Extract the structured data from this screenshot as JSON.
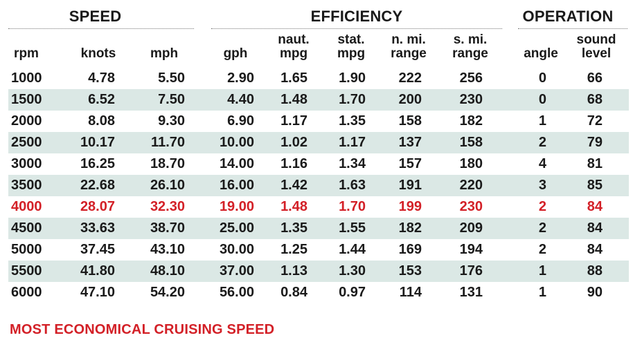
{
  "groups": {
    "speed": "SPEED",
    "efficiency": "EFFICIENCY",
    "operation": "OPERATION"
  },
  "columns": [
    {
      "key": "rpm",
      "label": "rpm"
    },
    {
      "key": "knots",
      "label": "knots"
    },
    {
      "key": "mph",
      "label": "mph"
    },
    {
      "key": "gph",
      "label": "gph"
    },
    {
      "key": "naut_mpg",
      "label": "naut.\nmpg"
    },
    {
      "key": "stat_mpg",
      "label": "stat.\nmpg"
    },
    {
      "key": "n_mi_range",
      "label": "n. mi.\nrange"
    },
    {
      "key": "s_mi_range",
      "label": "s. mi.\nrange"
    },
    {
      "key": "angle",
      "label": "angle"
    },
    {
      "key": "sound_level",
      "label": "sound\nlevel"
    }
  ],
  "rows": [
    {
      "values": [
        "1000",
        "4.78",
        "5.50",
        "2.90",
        "1.65",
        "1.90",
        "222",
        "256",
        "0",
        "66"
      ],
      "highlight": false
    },
    {
      "values": [
        "1500",
        "6.52",
        "7.50",
        "4.40",
        "1.48",
        "1.70",
        "200",
        "230",
        "0",
        "68"
      ],
      "highlight": false
    },
    {
      "values": [
        "2000",
        "8.08",
        "9.30",
        "6.90",
        "1.17",
        "1.35",
        "158",
        "182",
        "1",
        "72"
      ],
      "highlight": false
    },
    {
      "values": [
        "2500",
        "10.17",
        "11.70",
        "10.00",
        "1.02",
        "1.17",
        "137",
        "158",
        "2",
        "79"
      ],
      "highlight": false
    },
    {
      "values": [
        "3000",
        "16.25",
        "18.70",
        "14.00",
        "1.16",
        "1.34",
        "157",
        "180",
        "4",
        "81"
      ],
      "highlight": false
    },
    {
      "values": [
        "3500",
        "22.68",
        "26.10",
        "16.00",
        "1.42",
        "1.63",
        "191",
        "220",
        "3",
        "85"
      ],
      "highlight": false
    },
    {
      "values": [
        "4000",
        "28.07",
        "32.30",
        "19.00",
        "1.48",
        "1.70",
        "199",
        "230",
        "2",
        "84"
      ],
      "highlight": true
    },
    {
      "values": [
        "4500",
        "33.63",
        "38.70",
        "25.00",
        "1.35",
        "1.55",
        "182",
        "209",
        "2",
        "84"
      ],
      "highlight": false
    },
    {
      "values": [
        "5000",
        "37.45",
        "43.10",
        "30.00",
        "1.25",
        "1.44",
        "169",
        "194",
        "2",
        "84"
      ],
      "highlight": false
    },
    {
      "values": [
        "5500",
        "41.80",
        "48.10",
        "37.00",
        "1.13",
        "1.30",
        "153",
        "176",
        "1",
        "88"
      ],
      "highlight": false
    },
    {
      "values": [
        "6000",
        "47.10",
        "54.20",
        "56.00",
        "0.84",
        "0.97",
        "114",
        "131",
        "1",
        "90"
      ],
      "highlight": false
    }
  ],
  "footer": "MOST ECONOMICAL CRUISING SPEED",
  "colors": {
    "highlight": "#d32027",
    "text": "#1a1a1a",
    "band": "#dbe8e5"
  }
}
